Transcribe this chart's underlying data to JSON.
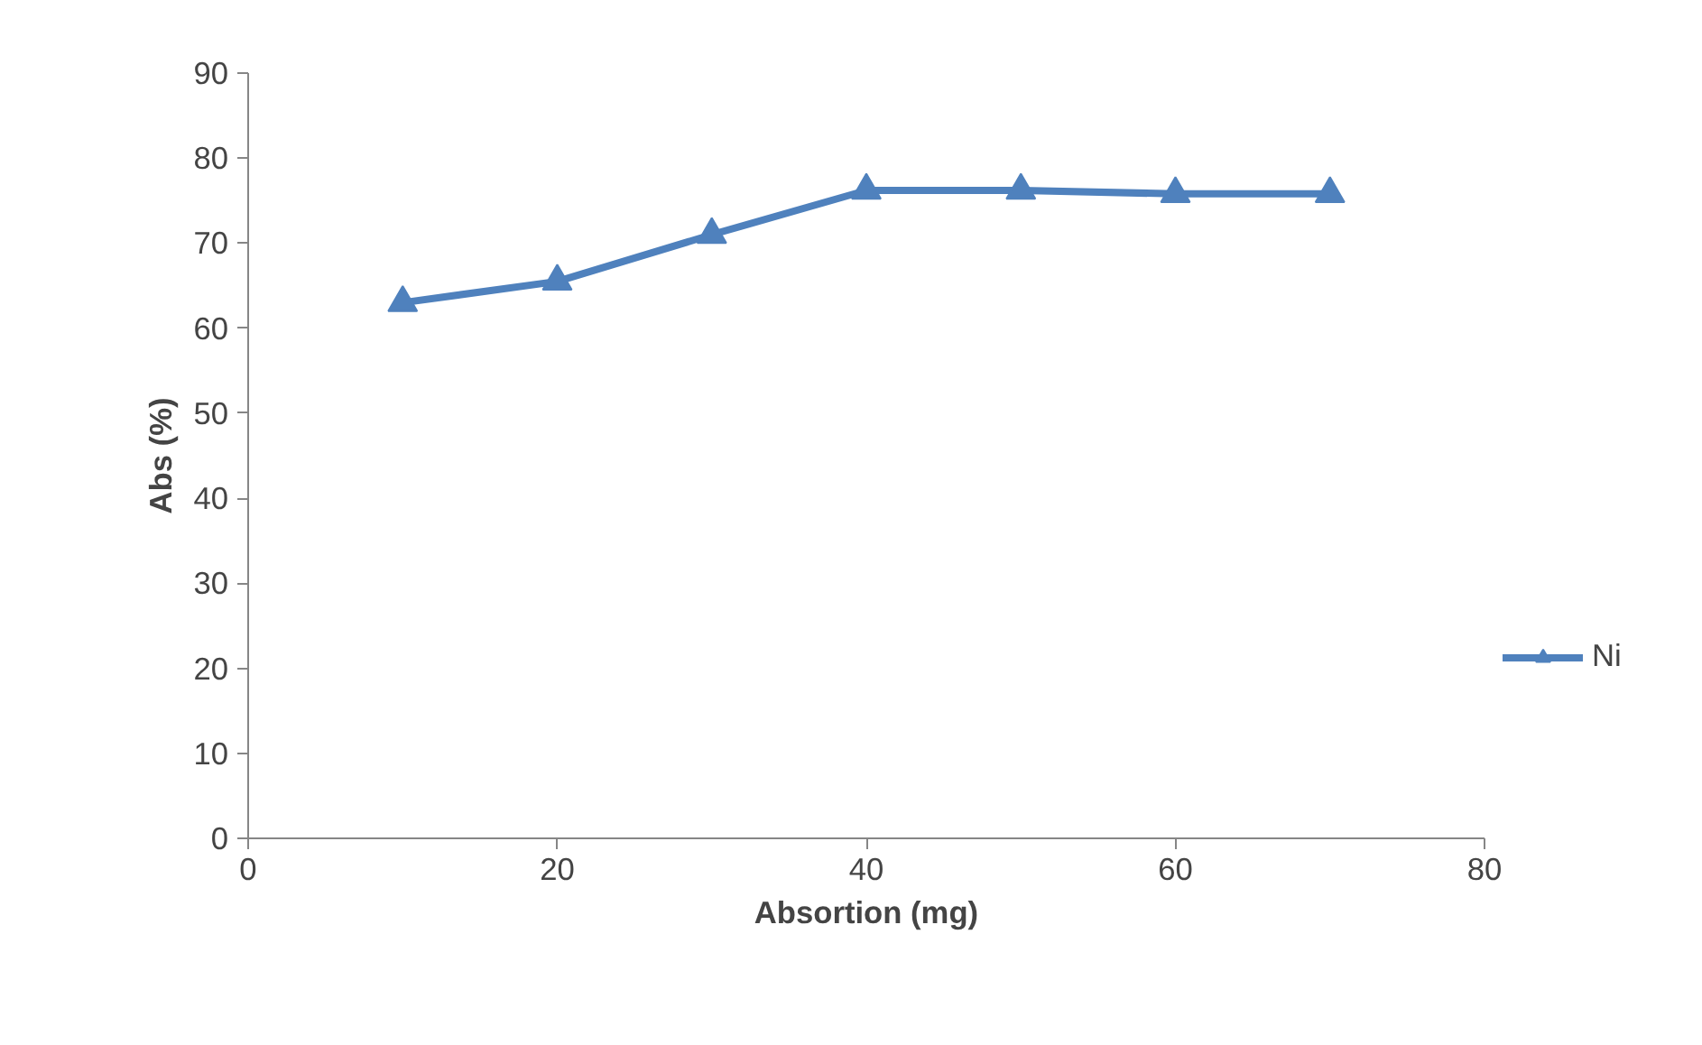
{
  "chart_data": {
    "type": "line",
    "xlabel": "Absortion (mg)",
    "ylabel": "Abs (%)",
    "x": [
      10,
      20,
      30,
      40,
      50,
      60,
      70
    ],
    "series": [
      {
        "name": "Ni",
        "color": "#4f81bd",
        "values": [
          63,
          65.5,
          71,
          76.2,
          76.2,
          75.8,
          75.8
        ]
      }
    ],
    "xlim": [
      0,
      80
    ],
    "xticks": [
      0,
      20,
      40,
      60,
      80
    ],
    "ylim": [
      0,
      90
    ],
    "yticks": [
      0,
      10,
      20,
      30,
      40,
      50,
      60,
      70,
      80,
      90
    ],
    "grid": false,
    "legend": "right",
    "marker": "triangle",
    "line_style": "solid"
  }
}
